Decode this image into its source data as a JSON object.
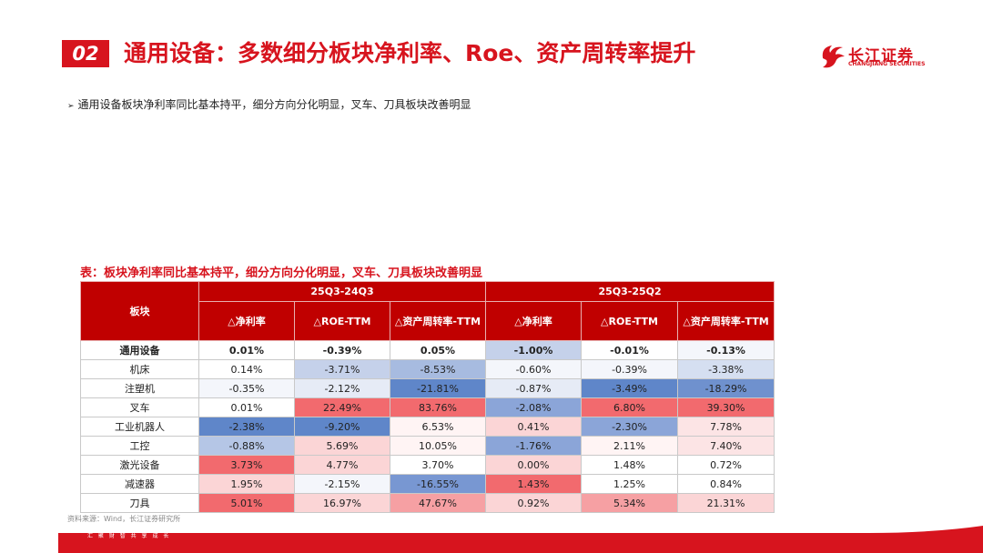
{
  "header": {
    "section_number": "02",
    "title": "通用设备：多数细分板块净利率、Roe、资产周转率提升",
    "logo_cn": "长江证券",
    "logo_en": "CHANGJIANG SECURITIES"
  },
  "bullet": {
    "arrow": "➢",
    "text": "通用设备板块净利率同比基本持平，细分方向分化明显，叉车、刀具板块改善明显"
  },
  "table": {
    "title": "表：板块净利率同比基本持平，细分方向分化明显，叉车、刀具板块改善明显",
    "col_block": "板块",
    "period1": "25Q3-24Q3",
    "period2": "25Q3-25Q2",
    "sub_headers": [
      "△净利率",
      "△ROE-TTM",
      "△资产周转率-TTM",
      "△净利率",
      "△ROE-TTM",
      "△资产周转率-TTM"
    ],
    "rows": [
      {
        "name": "通用设备",
        "values": [
          "0.01%",
          "-0.39%",
          "0.05%",
          "-1.00%",
          "-0.01%",
          "-0.13%"
        ],
        "colors": [
          "#ffffff",
          "#ffffff",
          "#ffffff",
          "#c5d1ea",
          "#ffffff",
          "#f4f6fb"
        ]
      },
      {
        "name": "机床",
        "values": [
          "0.14%",
          "-3.71%",
          "-8.53%",
          "-0.60%",
          "-0.39%",
          "-3.38%"
        ],
        "colors": [
          "#ffffff",
          "#c5d1ea",
          "#a7bbe0",
          "#f4f6fb",
          "#f4f6fb",
          "#d5dff1"
        ]
      },
      {
        "name": "注塑机",
        "values": [
          "-0.35%",
          "-2.12%",
          "-21.81%",
          "-0.87%",
          "-3.49%",
          "-18.29%"
        ],
        "colors": [
          "#f4f6fb",
          "#e6ebf6",
          "#5f86c9",
          "#e6ebf6",
          "#5f86c9",
          "#6f91ce"
        ]
      },
      {
        "name": "叉车",
        "values": [
          "0.01%",
          "22.49%",
          "83.76%",
          "-2.08%",
          "6.80%",
          "39.30%"
        ],
        "colors": [
          "#ffffff",
          "#f26a6e",
          "#f26a6e",
          "#8ba5d8",
          "#f26a6e",
          "#f26a6e"
        ]
      },
      {
        "name": "工业机器人",
        "values": [
          "-2.38%",
          "-9.20%",
          "6.53%",
          "0.41%",
          "-2.30%",
          "7.78%"
        ],
        "colors": [
          "#5f86c9",
          "#5f86c9",
          "#fff4f4",
          "#fbd5d6",
          "#8ba5d8",
          "#fce4e5"
        ]
      },
      {
        "name": "工控",
        "values": [
          "-0.88%",
          "5.69%",
          "10.05%",
          "-1.76%",
          "2.11%",
          "7.40%"
        ],
        "colors": [
          "#b5c6e6",
          "#fbd5d6",
          "#fff4f4",
          "#8ba5d8",
          "#fff4f4",
          "#fce4e5"
        ]
      },
      {
        "name": "激光设备",
        "values": [
          "3.73%",
          "4.77%",
          "3.70%",
          "0.00%",
          "1.48%",
          "0.72%"
        ],
        "colors": [
          "#f26a6e",
          "#fbd5d6",
          "#ffffff",
          "#fbd5d6",
          "#ffffff",
          "#ffffff"
        ]
      },
      {
        "name": "减速器",
        "values": [
          "1.95%",
          "-2.15%",
          "-16.55%",
          "1.43%",
          "1.25%",
          "0.84%"
        ],
        "colors": [
          "#fbd5d6",
          "#f4f6fb",
          "#7897d2",
          "#f26a6e",
          "#ffffff",
          "#ffffff"
        ]
      },
      {
        "name": "刀具",
        "values": [
          "5.01%",
          "16.97%",
          "47.67%",
          "0.92%",
          "5.34%",
          "21.31%"
        ],
        "colors": [
          "#f26a6e",
          "#fbd5d6",
          "#f6a0a3",
          "#fbd5d6",
          "#f6a0a3",
          "#fbd5d6"
        ]
      }
    ]
  },
  "source": "资料来源：Wind，长江证券研究所",
  "footer": {
    "tagline": "汇 聚 财 智    共 享 成 长"
  },
  "colors": {
    "brand_red": "#d7141e",
    "header_red": "#c00000"
  }
}
